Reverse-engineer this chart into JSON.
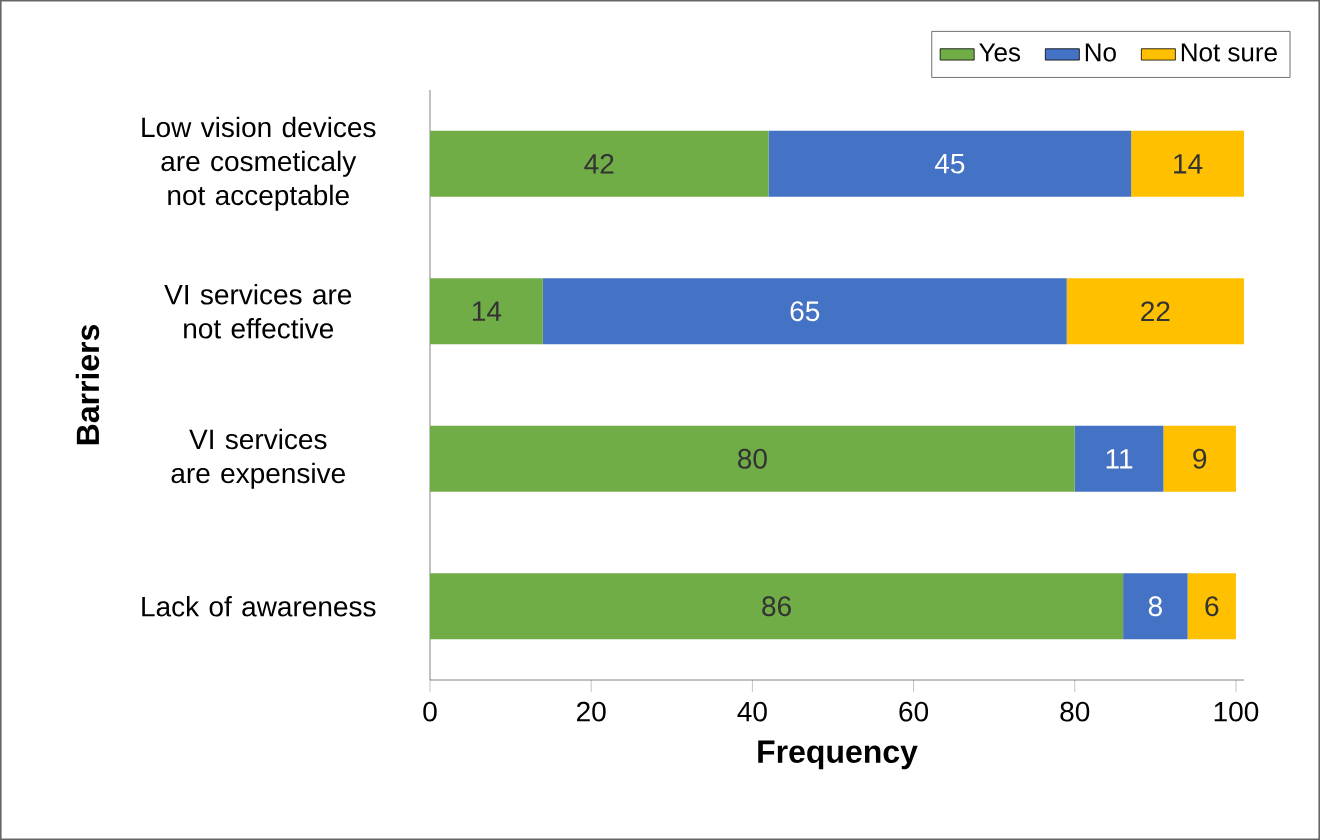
{
  "chart_data": {
    "type": "bar",
    "orientation": "horizontal",
    "stacked": true,
    "categories": [
      "Low vision devices are cosmeticaly not acceptable",
      "VI services are not effective",
      "VI services are expensive",
      "Lack of awareness"
    ],
    "series": [
      {
        "name": "Yes",
        "color": "#70ad47",
        "values": [
          42,
          14,
          80,
          86
        ]
      },
      {
        "name": "No",
        "color": "#4472c4",
        "values": [
          45,
          65,
          11,
          8
        ]
      },
      {
        "name": "Not sure",
        "color": "#ffc000",
        "values": [
          14,
          22,
          9,
          6
        ]
      }
    ],
    "xlim": [
      0,
      101
    ],
    "xticks": [
      0,
      20,
      40,
      60,
      80,
      100
    ],
    "xlabel": "Frequency",
    "ylabel": "Barriers",
    "legend": "top right",
    "data_labels": true
  }
}
